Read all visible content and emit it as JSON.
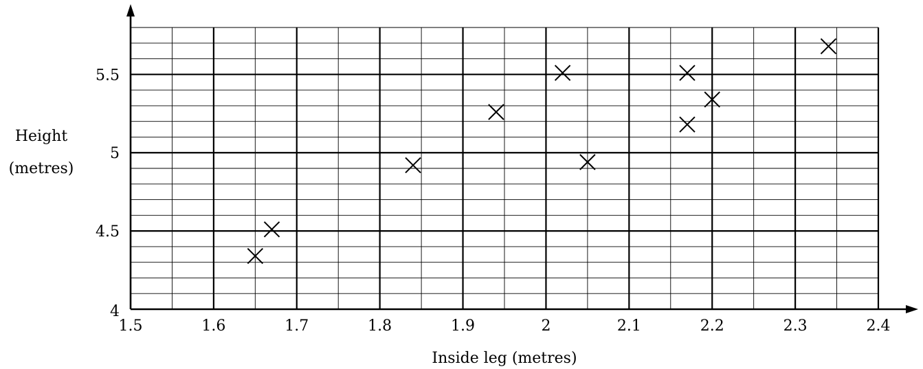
{
  "chart_data": {
    "type": "scatter",
    "title": "",
    "xlabel": "Inside leg (metres)",
    "ylabel_lines": [
      "Height",
      "(metres)"
    ],
    "xlim": [
      1.5,
      2.4
    ],
    "ylim": [
      4,
      5.8
    ],
    "x_ticks": [
      1.5,
      1.6,
      1.7,
      1.8,
      1.9,
      2.0,
      2.1,
      2.2,
      2.3,
      2.4
    ],
    "x_tick_labels": [
      "1.5",
      "1.6",
      "1.7",
      "1.8",
      "1.9",
      "2",
      "2.1",
      "2.2",
      "2.3",
      "2.4"
    ],
    "y_ticks": [
      4,
      4.5,
      5,
      5.5
    ],
    "y_tick_labels": [
      "4",
      "4.5",
      "5",
      "5.5"
    ],
    "x_minor_step": 0.05,
    "y_minor_step": 0.1,
    "grid": true,
    "marker": "x",
    "points": [
      {
        "x": 1.65,
        "y": 4.34
      },
      {
        "x": 1.67,
        "y": 4.51
      },
      {
        "x": 1.84,
        "y": 4.92
      },
      {
        "x": 1.94,
        "y": 5.26
      },
      {
        "x": 2.02,
        "y": 5.51
      },
      {
        "x": 2.05,
        "y": 4.94
      },
      {
        "x": 2.17,
        "y": 5.51
      },
      {
        "x": 2.17,
        "y": 5.18
      },
      {
        "x": 2.2,
        "y": 5.34
      },
      {
        "x": 2.34,
        "y": 5.68
      }
    ]
  }
}
